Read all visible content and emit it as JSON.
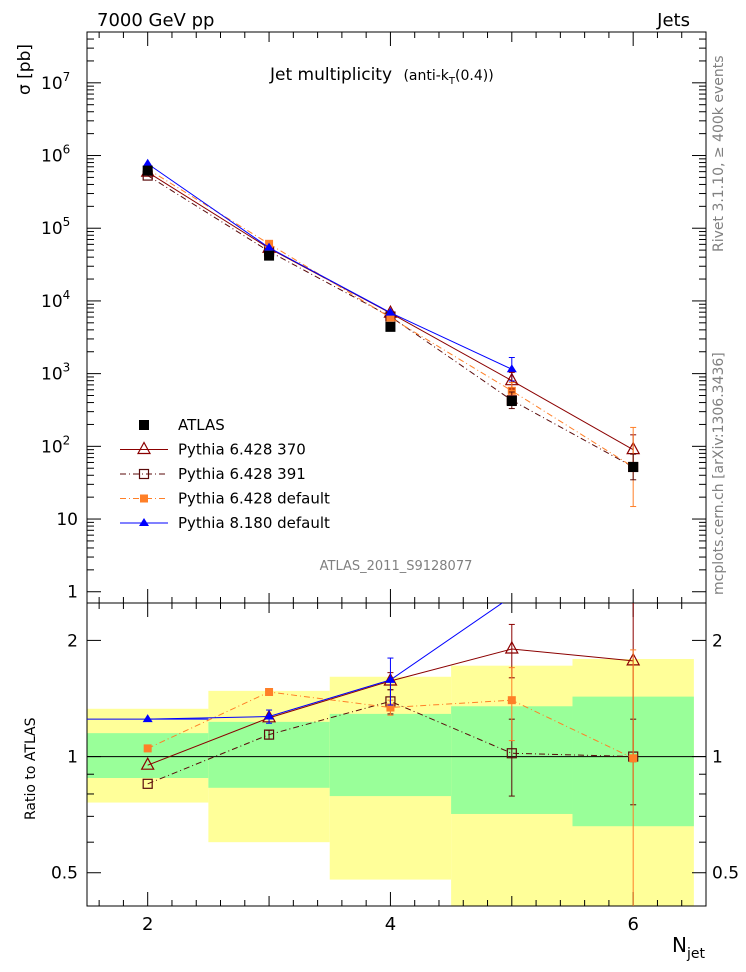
{
  "header": {
    "left": "7000 GeV pp",
    "right": "Jets"
  },
  "side_text": {
    "rivet": "Rivet 3.1.10, ≥ 400k events",
    "mcplots": "mcplots.cern.ch [arXiv:1306.3436]"
  },
  "colors": {
    "atlas": "#000000",
    "py370": "#8b0000",
    "py391": "#5a0a0a",
    "pydefault": "#ff7f27",
    "py8": "#0000ff",
    "band_inner": "#99ff99",
    "band_outer": "#ffff99"
  },
  "chart_data": {
    "type": "line",
    "title_main": "Jet multiplicity",
    "title_algo": "(anti-k",
    "title_sub": "T",
    "title_tail": "(0.4))",
    "analysis": "ATLAS_2011_S9128077",
    "xlabel_main": "N",
    "xlabel_sub": "jet",
    "ylabel": "σ [pb]",
    "ratio_ylabel": "Ratio to ATLAS",
    "x": [
      2,
      3,
      4,
      5,
      6
    ],
    "xlim": [
      1.5,
      6.6
    ],
    "ylim": [
      0.7,
      50000000
    ],
    "ratio_ylim": [
      0.41,
      2.5
    ],
    "x_tick_labels": [
      "2",
      "4",
      "6"
    ],
    "y_tick_labels": [
      {
        "v": 1,
        "base": "1",
        "exp": ""
      },
      {
        "v": 10,
        "base": "10",
        "exp": ""
      },
      {
        "v": 100,
        "base": "10",
        "exp": "2"
      },
      {
        "v": 1000,
        "base": "10",
        "exp": "3"
      },
      {
        "v": 10000,
        "base": "10",
        "exp": "4"
      },
      {
        "v": 100000,
        "base": "10",
        "exp": "5"
      },
      {
        "v": 1000000,
        "base": "10",
        "exp": "6"
      },
      {
        "v": 10000000,
        "base": "10",
        "exp": "7"
      }
    ],
    "ratio_tick_labels": [
      {
        "v": 0.5,
        "label": "0.5"
      },
      {
        "v": 1,
        "label": "1"
      },
      {
        "v": 2,
        "label": "2"
      }
    ],
    "atlas": {
      "name": "ATLAS",
      "values": [
        620000,
        42000,
        4400,
        420,
        52
      ]
    },
    "series": [
      {
        "key": "py370",
        "name": "Pythia 6.428 370",
        "marker": "open-triangle",
        "dash": "none",
        "values": [
          590000,
          53000,
          6800,
          800,
          90
        ],
        "ratio": [
          0.95,
          1.26,
          1.57,
          1.9,
          1.77
        ],
        "ratio_err": [
          0,
          0,
          0.08,
          0.3,
          0.8
        ]
      },
      {
        "key": "py391",
        "name": "Pythia 6.428 391",
        "marker": "open-square",
        "dash": "6,3,1,3",
        "values": [
          530000,
          48000,
          6100,
          430,
          52
        ],
        "ratio": [
          0.85,
          1.14,
          1.39,
          1.02,
          1.0
        ],
        "ratio_err": [
          0,
          0.03,
          0.1,
          0.23,
          0.25
        ]
      },
      {
        "key": "pydefault",
        "name": "Pythia 6.428 default",
        "marker": "filled-square",
        "dash": "6,3,1,3",
        "values": [
          650000,
          61000,
          5900,
          580,
          52
        ],
        "ratio": [
          1.05,
          1.47,
          1.34,
          1.4,
          0.99
        ],
        "ratio_err": [
          0,
          0.02,
          0.06,
          0.3,
          0.9
        ]
      },
      {
        "key": "py8",
        "name": "Pythia 8.180 default",
        "marker": "filled-triangle",
        "dash": "none",
        "values": [
          770000,
          54000,
          6900,
          1150,
          0
        ],
        "ratio": [
          1.25,
          1.27,
          1.58,
          2.6,
          0
        ],
        "ratio_err": [
          0,
          0.05,
          0.22,
          0,
          0
        ]
      }
    ],
    "bands": [
      {
        "x0": 1.5,
        "x1": 2.5,
        "inner": [
          0.88,
          1.15
        ],
        "outer": [
          0.76,
          1.33
        ]
      },
      {
        "x0": 2.5,
        "x1": 3.5,
        "inner": [
          0.83,
          1.23
        ],
        "outer": [
          0.6,
          1.48
        ]
      },
      {
        "x0": 3.5,
        "x1": 4.5,
        "inner": [
          0.79,
          1.29
        ],
        "outer": [
          0.48,
          1.61
        ]
      },
      {
        "x0": 4.5,
        "x1": 5.5,
        "inner": [
          0.71,
          1.35
        ],
        "outer": [
          0.41,
          1.72
        ]
      },
      {
        "x0": 5.5,
        "x1": 6.5,
        "inner": [
          0.66,
          1.43
        ],
        "outer": [
          0.41,
          1.79
        ]
      }
    ]
  }
}
